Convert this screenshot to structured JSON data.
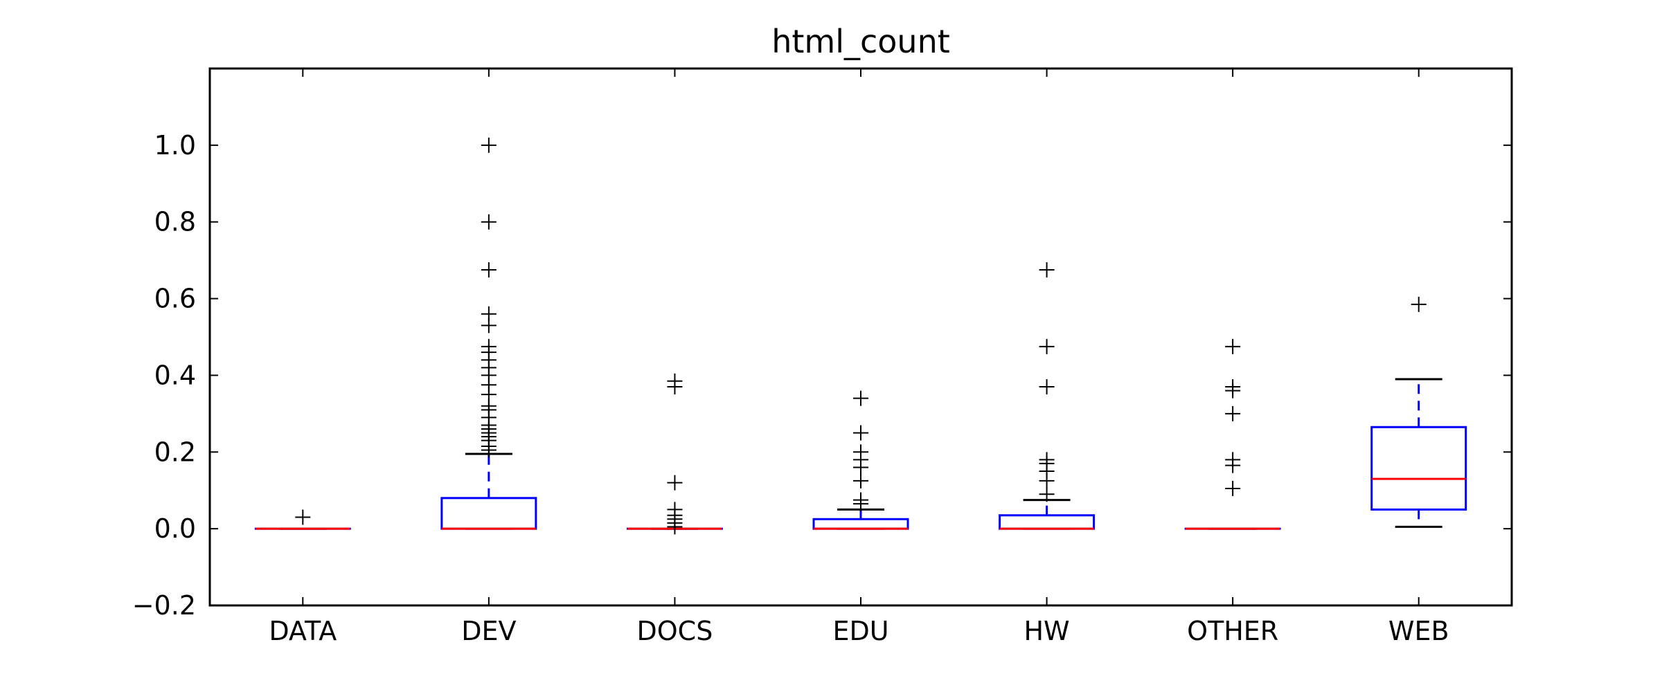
{
  "chart_data": {
    "type": "box",
    "title": "html_count",
    "xlabel": "",
    "ylabel": "",
    "ylim": [
      -0.2,
      1.2
    ],
    "yticks": [
      -0.2,
      0.0,
      0.2,
      0.4,
      0.6,
      0.8,
      1.0
    ],
    "ytick_labels": [
      "−0.2",
      "0.0",
      "0.2",
      "0.4",
      "0.6",
      "0.8",
      "1.0"
    ],
    "grid": false,
    "colors": {
      "box": "#0000ff",
      "median": "#ff0000",
      "whisker_cap": "#000000",
      "flier": "#000000"
    },
    "categories": [
      "DATA",
      "DEV",
      "DOCS",
      "EDU",
      "HW",
      "OTHER",
      "WEB"
    ],
    "boxes": [
      {
        "category": "DATA",
        "q1": 0.0,
        "median": 0.0,
        "q3": 0.0,
        "whisker_low": 0.0,
        "whisker_high": 0.0,
        "fliers": [
          0.03
        ]
      },
      {
        "category": "DEV",
        "q1": 0.0,
        "median": 0.0,
        "q3": 0.08,
        "whisker_low": 0.0,
        "whisker_high": 0.195,
        "fliers": [
          1.0,
          0.8,
          0.675,
          0.56,
          0.53,
          0.475,
          0.46,
          0.44,
          0.42,
          0.4,
          0.375,
          0.35,
          0.32,
          0.31,
          0.29,
          0.27,
          0.26,
          0.25,
          0.24,
          0.23,
          0.215,
          0.205
        ]
      },
      {
        "category": "DOCS",
        "q1": 0.0,
        "median": 0.0,
        "q3": 0.0,
        "whisker_low": 0.0,
        "whisker_high": 0.0,
        "fliers": [
          0.385,
          0.37,
          0.12,
          0.05,
          0.035,
          0.025,
          0.015,
          0.005
        ]
      },
      {
        "category": "EDU",
        "q1": 0.0,
        "median": 0.0,
        "q3": 0.025,
        "whisker_low": 0.0,
        "whisker_high": 0.05,
        "fliers": [
          0.34,
          0.25,
          0.2,
          0.18,
          0.16,
          0.125,
          0.075,
          0.065
        ]
      },
      {
        "category": "HW",
        "q1": 0.0,
        "median": 0.0,
        "q3": 0.035,
        "whisker_low": 0.0,
        "whisker_high": 0.075,
        "fliers": [
          0.675,
          0.475,
          0.37,
          0.18,
          0.17,
          0.15,
          0.125,
          0.09
        ]
      },
      {
        "category": "OTHER",
        "q1": 0.0,
        "median": 0.0,
        "q3": 0.0,
        "whisker_low": 0.0,
        "whisker_high": 0.0,
        "fliers": [
          0.475,
          0.37,
          0.36,
          0.3,
          0.18,
          0.165,
          0.105
        ]
      },
      {
        "category": "WEB",
        "q1": 0.05,
        "median": 0.13,
        "q3": 0.265,
        "whisker_low": 0.005,
        "whisker_high": 0.39,
        "fliers": [
          0.585
        ]
      }
    ]
  }
}
